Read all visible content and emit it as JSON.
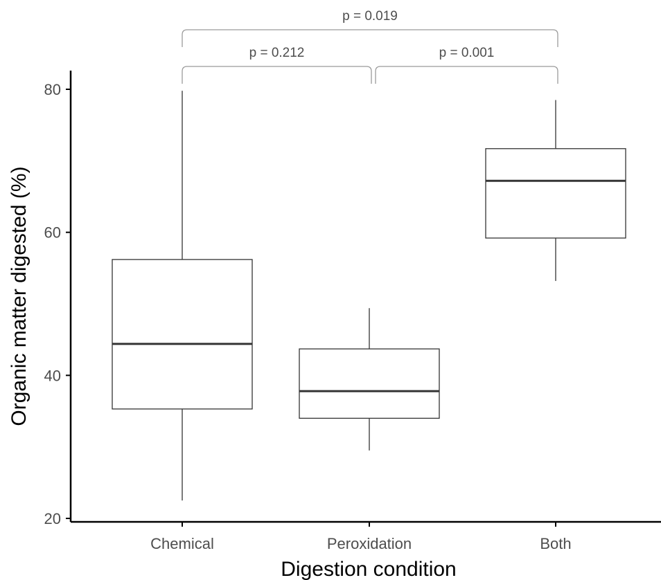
{
  "chart_data": {
    "type": "box",
    "xlabel": "Digestion condition",
    "ylabel": "Organic matter digested (%)",
    "ylim": [
      20,
      80
    ],
    "yticks": [
      20,
      40,
      60,
      80
    ],
    "grid": false,
    "categories": [
      "Chemical",
      "Peroxidation",
      "Both"
    ],
    "boxes": [
      {
        "category": "Chemical",
        "min": 22.5,
        "q1": 35.3,
        "median": 44.4,
        "q3": 56.2,
        "max": 79.8
      },
      {
        "category": "Peroxidation",
        "min": 29.5,
        "q1": 34.0,
        "median": 37.8,
        "q3": 43.7,
        "max": 49.4
      },
      {
        "category": "Both",
        "min": 53.2,
        "q1": 59.2,
        "median": 67.2,
        "q3": 71.7,
        "max": 78.5
      }
    ],
    "comparisons": [
      {
        "from": "Chemical",
        "to": "Both",
        "label": "p = 0.019"
      },
      {
        "from": "Chemical",
        "to": "Peroxidation",
        "label": "p = 0.212"
      },
      {
        "from": "Peroxidation",
        "to": "Both",
        "label": "p = 0.001"
      }
    ]
  }
}
